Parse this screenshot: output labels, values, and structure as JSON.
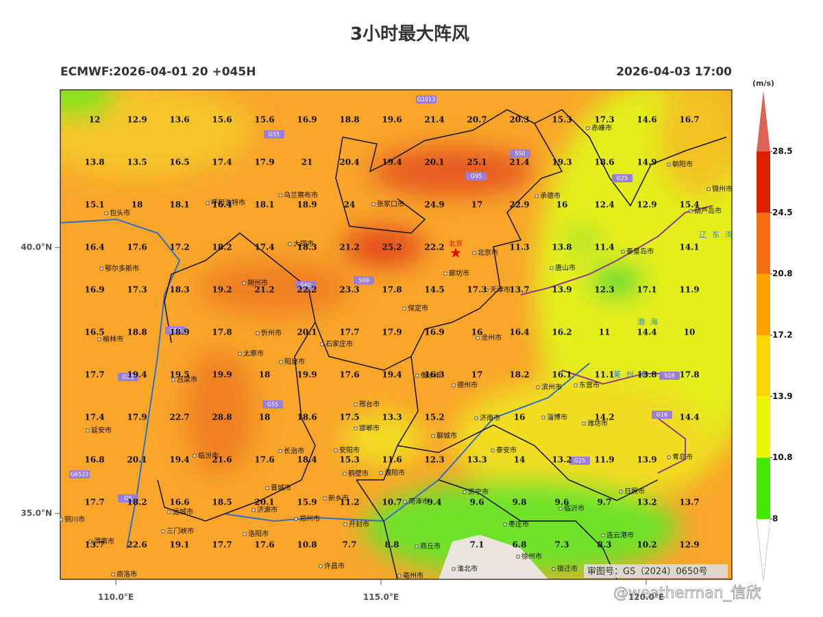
{
  "title": "3小时最大阵风",
  "header": {
    "left": "ECMWF:2026-04-01 20 +045H",
    "right": "2026-04-03 17:00"
  },
  "map": {
    "lat_ticks": [
      {
        "value": 40,
        "label": "40.0°N"
      },
      {
        "value": 35,
        "label": "35.0°N"
      }
    ],
    "lon_ticks": [
      {
        "value": 110,
        "label": "110.0°E"
      },
      {
        "value": 115,
        "label": "115.0°E"
      },
      {
        "value": 120,
        "label": "120.0°E"
      }
    ]
  },
  "grid_values": {
    "rows": [
      [
        12.0,
        12.9,
        13.6,
        15.6,
        15.6,
        16.9,
        18.8,
        19.6,
        21.4,
        20.7,
        20.3,
        15.3,
        17.3,
        14.6,
        16.7
      ],
      [
        13.8,
        13.5,
        16.5,
        17.4,
        17.9,
        21.0,
        20.4,
        19.4,
        20.1,
        25.1,
        21.4,
        19.3,
        18.6,
        14.9,
        null
      ],
      [
        15.1,
        18.0,
        18.1,
        16.4,
        18.1,
        18.9,
        24.0,
        null,
        24.9,
        17.0,
        22.9,
        16.0,
        12.4,
        12.9,
        15.4
      ],
      [
        16.4,
        17.6,
        17.2,
        18.2,
        17.4,
        18.3,
        21.2,
        25.2,
        22.2,
        null,
        11.3,
        13.8,
        11.4,
        null,
        14.1
      ],
      [
        16.9,
        17.3,
        18.3,
        19.2,
        21.2,
        22.2,
        23.3,
        17.8,
        14.5,
        17.3,
        13.7,
        13.9,
        12.3,
        17.1,
        11.9
      ],
      [
        16.5,
        18.8,
        18.9,
        17.8,
        null,
        20.1,
        17.7,
        17.9,
        16.9,
        16.0,
        16.4,
        16.2,
        11.0,
        14.4,
        10.0
      ],
      [
        17.7,
        19.4,
        19.5,
        19.9,
        18.0,
        19.9,
        17.6,
        19.4,
        16.3,
        17.0,
        18.2,
        16.1,
        11.1,
        13.8,
        17.8
      ],
      [
        17.4,
        17.9,
        22.7,
        28.8,
        18.0,
        18.6,
        17.5,
        13.3,
        15.2,
        null,
        16.0,
        null,
        14.2,
        null,
        14.4
      ],
      [
        16.8,
        20.1,
        19.4,
        21.6,
        17.6,
        18.4,
        15.3,
        11.6,
        12.3,
        13.3,
        14.0,
        13.2,
        11.9,
        13.9,
        null
      ],
      [
        17.7,
        18.2,
        16.6,
        18.5,
        20.1,
        15.9,
        11.2,
        10.7,
        9.4,
        9.6,
        9.8,
        9.6,
        9.7,
        13.2,
        13.7
      ],
      [
        13.7,
        22.6,
        19.1,
        17.7,
        17.6,
        10.8,
        7.7,
        8.8,
        null,
        7.1,
        6.8,
        7.3,
        8.3,
        10.2,
        12.9
      ]
    ]
  },
  "cities": [
    "赤峰市",
    "朝阳市",
    "锦州市",
    "葫芦岛市",
    "包头市",
    "呼和浩特市",
    "乌兰察布市",
    "张家口市",
    "承德市",
    "大同市",
    "北京",
    "北京市",
    "秦皇岛市",
    "唐山市",
    "鄂尔多斯市",
    "朔州市",
    "廊坊市",
    "天津市",
    "保定市",
    "榆林市",
    "忻州市",
    "沧州市",
    "太原市",
    "阳泉市",
    "石家庄市",
    "衡水市",
    "吕梁市",
    "德州市",
    "滨州市",
    "东营市",
    "邢台市",
    "济南市",
    "淄博市",
    "潍坊市",
    "延安市",
    "邯郸市",
    "聊城市",
    "长治市",
    "临汾市",
    "安阳市",
    "泰安市",
    "青岛市",
    "鹤壁市",
    "濮阳市",
    "晋城市",
    "日照市",
    "新乡市",
    "济宁市",
    "菏泽市",
    "临沂市",
    "运城市",
    "济源市",
    "郑州市",
    "开封市",
    "枣庄市",
    "铜川市",
    "三门峡市",
    "洛阳市",
    "连云港市",
    "渭南市",
    "商丘市",
    "徐州市",
    "许昌市",
    "宿迁市",
    "淮北市",
    "亳州市",
    "商洛市"
  ],
  "seas": [
    "辽东湾",
    "渤海",
    "莱州湾"
  ],
  "roads": [
    "G1013",
    "G55",
    "G95",
    "S50",
    "G25",
    "S40",
    "S69",
    "G59",
    "G20",
    "G55",
    "G6522",
    "G5",
    "G25",
    "S18",
    "G16"
  ],
  "colorbar": {
    "unit": "(m/s)",
    "levels": [
      8,
      10.8,
      13.9,
      17.2,
      20.8,
      24.5,
      28.5
    ],
    "colors": [
      "#44e800",
      "#ecf500",
      "#fdd700",
      "#ffa200",
      "#f76f13",
      "#dc2000"
    ],
    "over_color": "#de6458",
    "under_color": "#ffffff"
  },
  "stamp": "审图号：GS（2024）0650号",
  "watermark": "@weatherman_信欣"
}
